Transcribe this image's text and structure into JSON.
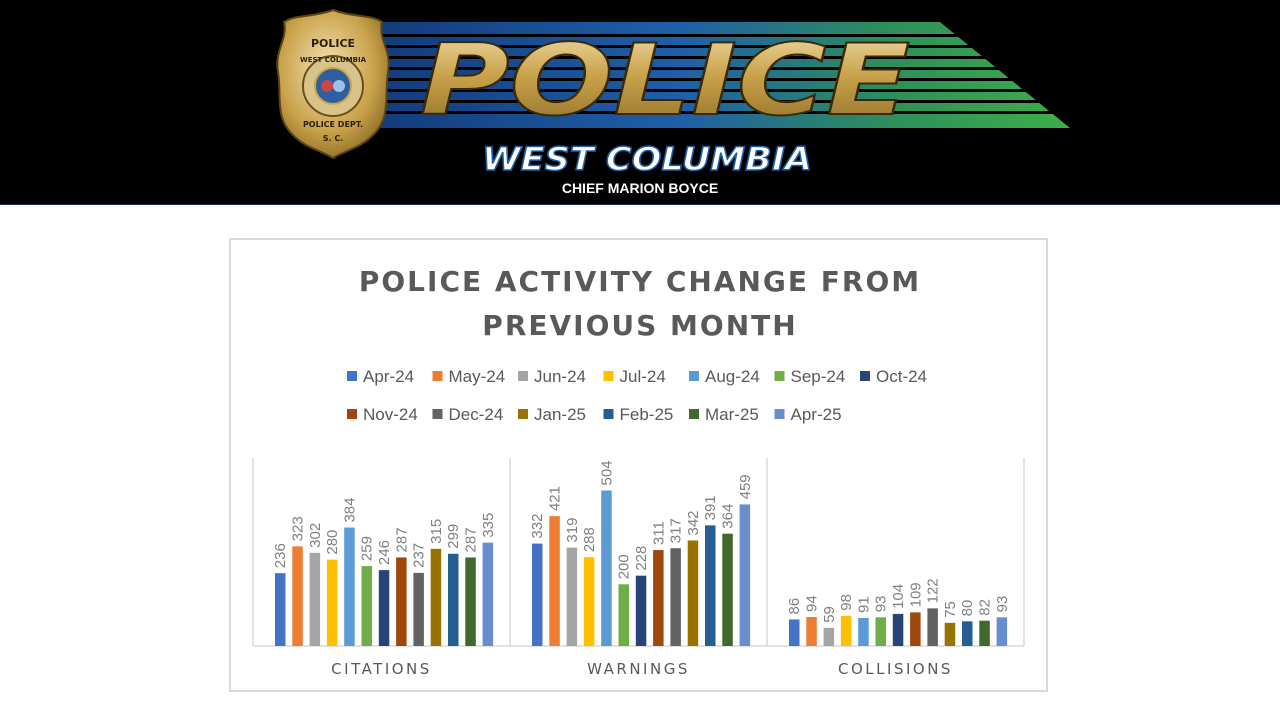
{
  "header": {
    "badge_top": "POLICE",
    "badge_city": "WEST COLUMBIA",
    "badge_dept": "POLICE DEPT.",
    "badge_state": "S. C.",
    "wordmark": "POLICE",
    "city": "WEST COLUMBIA",
    "chief": "CHIEF MARION BOYCE"
  },
  "colors": {
    "banner_bg": "#000000",
    "gold": "#c9a24a",
    "blue": "#1f5fa8",
    "green": "#3fae49",
    "text_gray": "#595959"
  },
  "chart_data": {
    "type": "bar",
    "title": "POLICE ACTIVITY CHANGE FROM PREVIOUS MONTH",
    "title_lines": [
      "POLICE ACTIVITY CHANGE FROM",
      "PREVIOUS MONTH"
    ],
    "categories": [
      "CITATIONS",
      "WARNINGS",
      "COLLISIONS"
    ],
    "series": [
      {
        "name": "Apr-24",
        "color": "#4472c4",
        "values": [
          236,
          332,
          86
        ]
      },
      {
        "name": "May-24",
        "color": "#ed7d31",
        "values": [
          323,
          421,
          94
        ]
      },
      {
        "name": "Jun-24",
        "color": "#a5a5a5",
        "values": [
          302,
          319,
          59
        ]
      },
      {
        "name": "Jul-24",
        "color": "#ffc000",
        "values": [
          280,
          288,
          98
        ]
      },
      {
        "name": "Aug-24",
        "color": "#5b9bd5",
        "values": [
          384,
          504,
          91
        ]
      },
      {
        "name": "Sep-24",
        "color": "#70ad47",
        "values": [
          259,
          200,
          93
        ]
      },
      {
        "name": "Oct-24",
        "color": "#264478",
        "values": [
          246,
          228,
          104
        ]
      },
      {
        "name": "Nov-24",
        "color": "#9e480e",
        "values": [
          287,
          311,
          109
        ]
      },
      {
        "name": "Dec-24",
        "color": "#636363",
        "values": [
          237,
          317,
          122
        ]
      },
      {
        "name": "Jan-25",
        "color": "#997300",
        "values": [
          315,
          342,
          75
        ]
      },
      {
        "name": "Feb-25",
        "color": "#255e91",
        "values": [
          299,
          391,
          80
        ]
      },
      {
        "name": "Mar-25",
        "color": "#43682b",
        "values": [
          287,
          364,
          82
        ]
      },
      {
        "name": "Apr-25",
        "color": "#698ed0",
        "values": [
          335,
          459,
          93
        ]
      }
    ],
    "ylim": [
      0,
      600
    ],
    "grid": false,
    "legend_position": "top",
    "data_labels": true
  }
}
